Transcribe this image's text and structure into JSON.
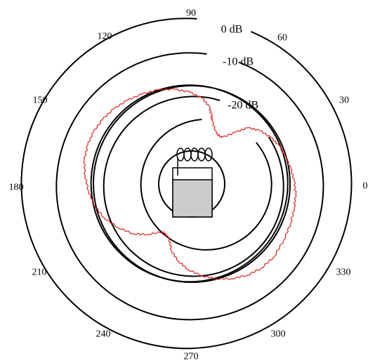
{
  "angle_labels": [
    "0",
    "30",
    "60",
    "90",
    "120",
    "150",
    "180",
    "210",
    "240",
    "270",
    "300",
    "330"
  ],
  "ring_labels": [
    "0 dB",
    "-10 dB",
    "-20 dB"
  ],
  "colors": {
    "rings": "#000000",
    "pattern": "#e02020",
    "device_fill": "#cccccc"
  }
}
